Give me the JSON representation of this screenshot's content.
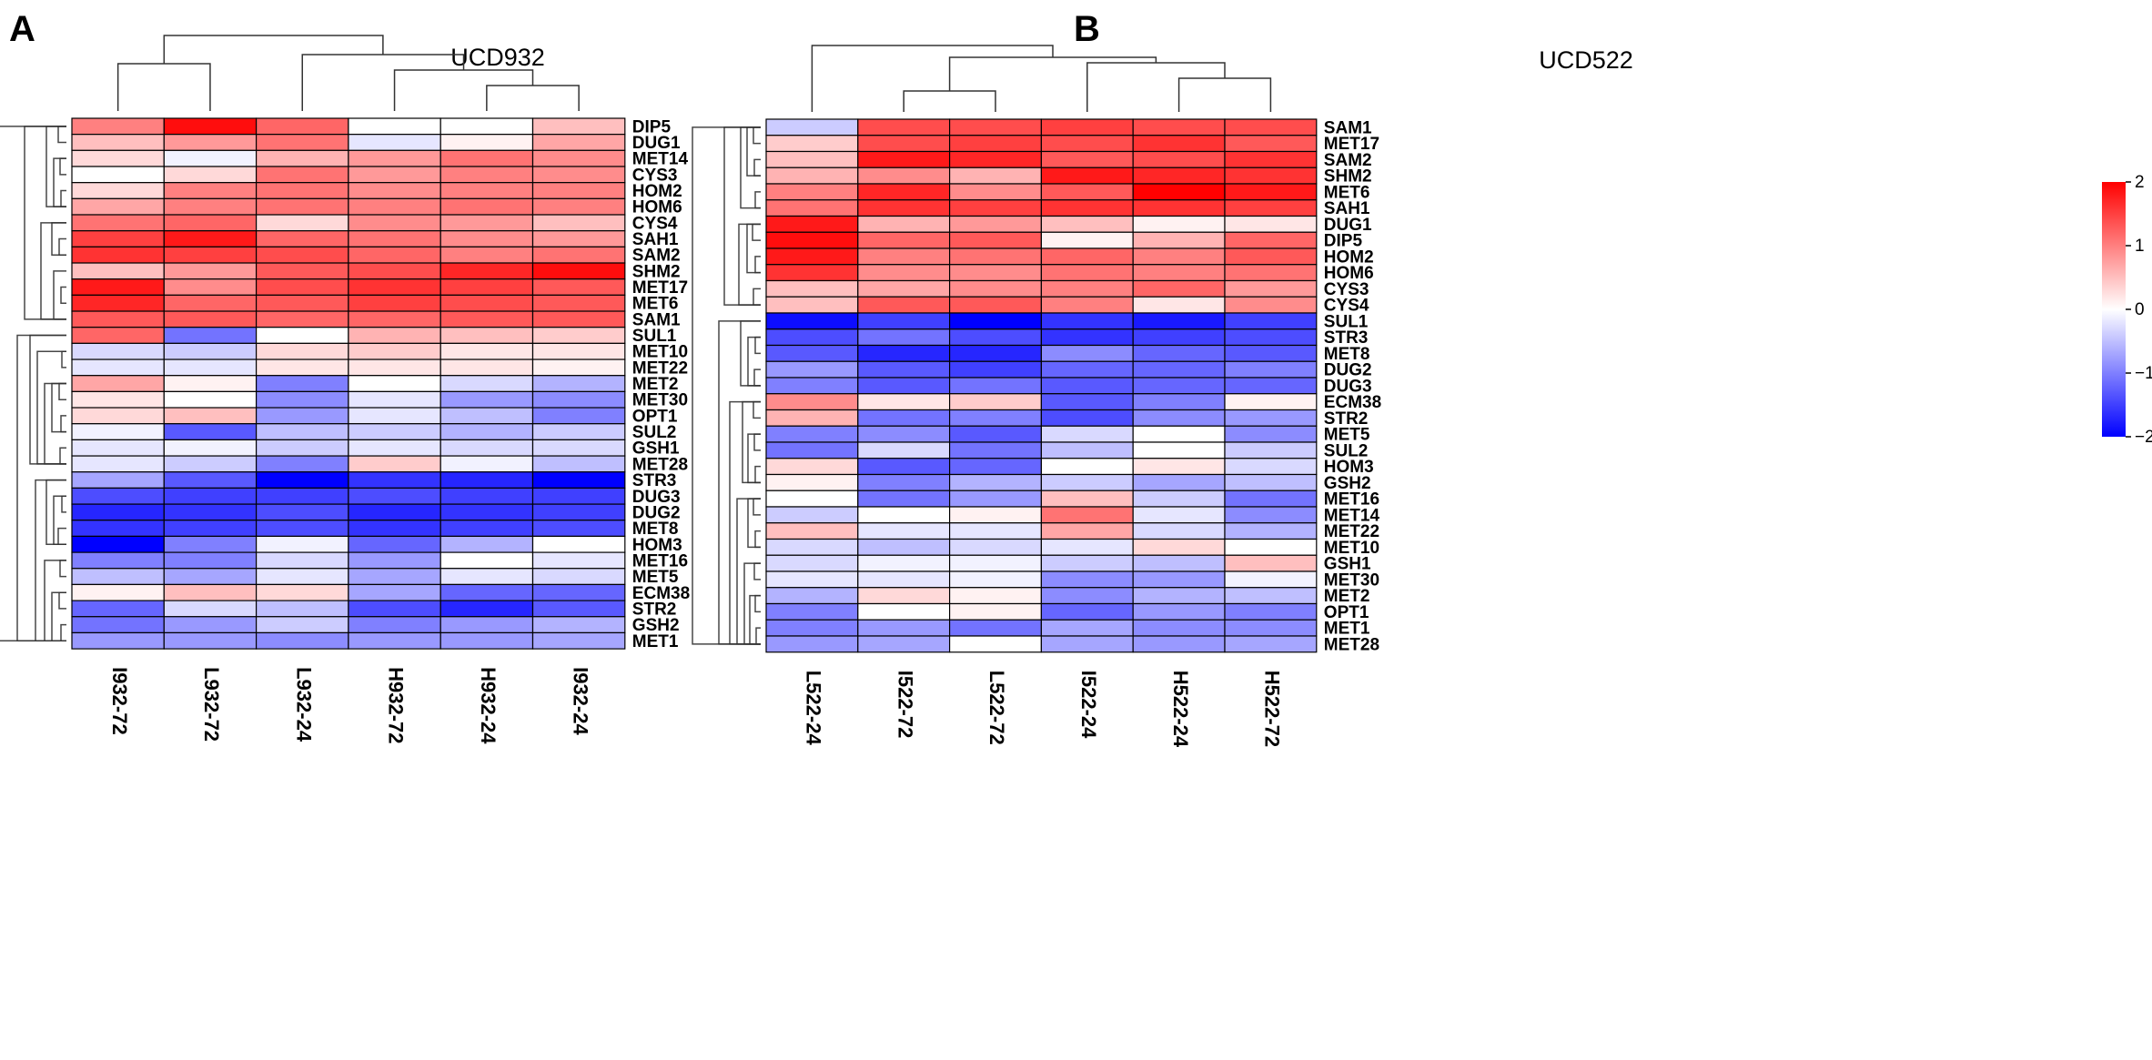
{
  "chart_data": [
    {
      "type": "heatmap",
      "panel": "A",
      "title": "UCD932",
      "columns": [
        "I932-72",
        "L932-72",
        "L932-24",
        "H932-72",
        "H932-24",
        "I932-24"
      ],
      "rows": [
        "DIP5",
        "DUG1",
        "MET14",
        "CYS3",
        "HOM2",
        "HOM6",
        "CYS4",
        "SAH1",
        "SAM2",
        "SHM2",
        "MET17",
        "MET6",
        "SAM1",
        "SUL1",
        "MET10",
        "MET22",
        "MET2",
        "MET30",
        "OPT1",
        "SUL2",
        "GSH1",
        "MET28",
        "STR3",
        "DUG3",
        "DUG2",
        "MET8",
        "HOM3",
        "MET16",
        "MET5",
        "ECM38",
        "STR2",
        "GSH2",
        "MET1"
      ],
      "values": [
        [
          1.0,
          1.9,
          1.2,
          0.0,
          0.0,
          0.5
        ],
        [
          0.5,
          0.8,
          1.1,
          -0.2,
          0.1,
          0.7
        ],
        [
          0.3,
          -0.1,
          0.6,
          0.8,
          1.1,
          0.9
        ],
        [
          0.0,
          0.3,
          1.1,
          0.8,
          1.0,
          0.9
        ],
        [
          0.3,
          1.0,
          1.1,
          0.9,
          1.0,
          1.0
        ],
        [
          0.7,
          1.0,
          1.1,
          1.0,
          1.1,
          1.0
        ],
        [
          1.1,
          1.2,
          0.3,
          0.9,
          0.8,
          0.5
        ],
        [
          1.5,
          1.8,
          1.2,
          1.1,
          0.9,
          0.8
        ],
        [
          1.6,
          1.5,
          1.4,
          1.2,
          1.0,
          1.1
        ],
        [
          0.5,
          0.8,
          1.3,
          1.4,
          1.7,
          1.9
        ],
        [
          1.8,
          0.9,
          1.4,
          1.6,
          1.5,
          1.3
        ],
        [
          1.7,
          1.2,
          1.3,
          1.5,
          1.4,
          1.3
        ],
        [
          1.3,
          1.3,
          1.2,
          1.2,
          1.3,
          1.3
        ],
        [
          1.2,
          -1.1,
          0.0,
          0.6,
          0.5,
          0.4
        ],
        [
          -0.3,
          -0.4,
          0.3,
          0.4,
          0.2,
          0.2
        ],
        [
          -0.2,
          -0.2,
          0.2,
          0.2,
          0.2,
          0.1
        ],
        [
          0.7,
          0.1,
          -1.0,
          0.0,
          -0.3,
          -0.6
        ],
        [
          0.2,
          0.0,
          -0.9,
          -0.2,
          -0.8,
          -0.9
        ],
        [
          0.3,
          0.5,
          -0.8,
          -0.2,
          -0.5,
          -1.0
        ],
        [
          -0.1,
          -1.3,
          -0.5,
          -0.4,
          -0.6,
          -0.4
        ],
        [
          -0.2,
          -0.1,
          -0.4,
          -0.2,
          -0.3,
          -0.3
        ],
        [
          -0.2,
          -0.4,
          -1.0,
          0.4,
          -0.1,
          -0.5
        ],
        [
          -0.7,
          -1.3,
          -2.0,
          -1.6,
          -1.7,
          -2.0
        ],
        [
          -1.4,
          -1.5,
          -1.5,
          -1.4,
          -1.5,
          -1.5
        ],
        [
          -1.7,
          -1.6,
          -1.4,
          -1.7,
          -1.6,
          -1.5
        ],
        [
          -1.6,
          -1.5,
          -1.4,
          -1.6,
          -1.5,
          -1.4
        ],
        [
          -2.0,
          -1.0,
          -0.1,
          -1.2,
          -0.6,
          0.0
        ],
        [
          -1.0,
          -1.0,
          -0.3,
          -0.8,
          0.0,
          -0.2
        ],
        [
          -0.5,
          -0.7,
          -0.2,
          -0.7,
          -0.2,
          -0.3
        ],
        [
          0.1,
          0.5,
          0.3,
          -0.7,
          -1.2,
          -1.2
        ],
        [
          -1.2,
          -0.3,
          -0.5,
          -1.4,
          -1.7,
          -1.3
        ],
        [
          -1.1,
          -0.8,
          -0.4,
          -1.0,
          -0.8,
          -0.6
        ],
        [
          -0.8,
          -0.8,
          -0.9,
          -0.8,
          -0.8,
          -0.7
        ]
      ]
    },
    {
      "type": "heatmap",
      "panel": "B",
      "title": "UCD522",
      "columns": [
        "L522-24",
        "I522-72",
        "L522-72",
        "I522-24",
        "H522-24",
        "H522-72"
      ],
      "rows": [
        "SAM1",
        "MET17",
        "SAM2",
        "SHM2",
        "MET6",
        "SAH1",
        "DUG1",
        "DIP5",
        "HOM2",
        "HOM6",
        "CYS3",
        "CYS4",
        "SUL1",
        "STR3",
        "MET8",
        "DUG2",
        "DUG3",
        "ECM38",
        "STR2",
        "MET5",
        "SUL2",
        "HOM3",
        "GSH2",
        "MET16",
        "MET14",
        "MET22",
        "MET10",
        "GSH1",
        "MET30",
        "MET2",
        "OPT1",
        "MET1",
        "MET28"
      ],
      "values": [
        [
          -0.4,
          1.4,
          1.4,
          1.5,
          1.4,
          1.4
        ],
        [
          0.4,
          1.4,
          1.5,
          1.4,
          1.6,
          1.3
        ],
        [
          0.5,
          1.8,
          1.7,
          1.3,
          1.4,
          1.6
        ],
        [
          0.6,
          0.9,
          0.6,
          1.8,
          1.7,
          1.6
        ],
        [
          1.0,
          1.7,
          0.9,
          1.3,
          2.0,
          1.8
        ],
        [
          1.1,
          1.6,
          1.5,
          1.6,
          1.6,
          1.5
        ],
        [
          1.8,
          0.6,
          0.8,
          0.5,
          0.1,
          0.2
        ],
        [
          1.9,
          1.2,
          1.3,
          0.1,
          0.6,
          1.2
        ],
        [
          1.8,
          1.0,
          1.1,
          1.2,
          1.0,
          1.3
        ],
        [
          1.6,
          0.9,
          0.9,
          1.1,
          1.0,
          1.1
        ],
        [
          0.5,
          0.7,
          0.9,
          1.0,
          1.2,
          0.8
        ],
        [
          0.5,
          1.3,
          1.3,
          1.0,
          0.2,
          0.9
        ],
        [
          -1.9,
          -1.5,
          -2.0,
          -1.6,
          -1.8,
          -1.5
        ],
        [
          -1.4,
          -1.1,
          -1.4,
          -1.6,
          -1.5,
          -1.4
        ],
        [
          -1.3,
          -1.7,
          -1.7,
          -0.9,
          -1.2,
          -1.3
        ],
        [
          -0.8,
          -1.3,
          -1.5,
          -1.2,
          -1.2,
          -1.0
        ],
        [
          -1.0,
          -1.3,
          -1.1,
          -1.3,
          -1.2,
          -1.2
        ],
        [
          0.9,
          0.2,
          0.4,
          -1.3,
          -1.0,
          0.1
        ],
        [
          0.6,
          -1.1,
          -1.0,
          -1.4,
          -0.9,
          -0.8
        ],
        [
          -1.0,
          -0.9,
          -1.3,
          -0.3,
          0.0,
          -0.9
        ],
        [
          -1.1,
          -0.3,
          -1.1,
          -0.5,
          0.0,
          -0.4
        ],
        [
          0.3,
          -1.3,
          -1.2,
          0.0,
          0.2,
          -0.3
        ],
        [
          0.1,
          -1.0,
          -0.6,
          -0.4,
          -0.7,
          -0.5
        ],
        [
          0.0,
          -1.1,
          -0.8,
          0.5,
          -0.4,
          -1.1
        ],
        [
          -0.4,
          0.0,
          0.1,
          1.1,
          -0.2,
          -0.9
        ],
        [
          0.5,
          -0.2,
          -0.2,
          0.7,
          -0.3,
          -0.6
        ],
        [
          -0.3,
          -0.5,
          -0.3,
          -0.2,
          0.3,
          0.0
        ],
        [
          -0.3,
          -0.1,
          -0.1,
          -0.4,
          -0.5,
          0.5
        ],
        [
          -0.2,
          -0.2,
          -0.1,
          -0.9,
          -0.8,
          -0.1
        ],
        [
          -0.6,
          0.3,
          0.1,
          -0.9,
          -0.6,
          -0.5
        ],
        [
          -1.0,
          0.0,
          0.1,
          -1.2,
          -0.8,
          -1.0
        ],
        [
          -1.0,
          -0.8,
          -1.1,
          -0.7,
          -0.9,
          -0.9
        ],
        [
          -0.8,
          -0.7,
          0.0,
          -0.7,
          -0.8,
          -0.7
        ]
      ]
    }
  ],
  "legend": {
    "ticks": [
      2,
      1,
      0,
      -1,
      -2
    ],
    "tick_labels": [
      "2",
      "1",
      "0",
      "−1",
      "−2"
    ],
    "colors": {
      "high": "#ff0000",
      "mid": "#ffffff",
      "low": "#0000ff"
    },
    "range": [
      -2,
      2
    ]
  }
}
